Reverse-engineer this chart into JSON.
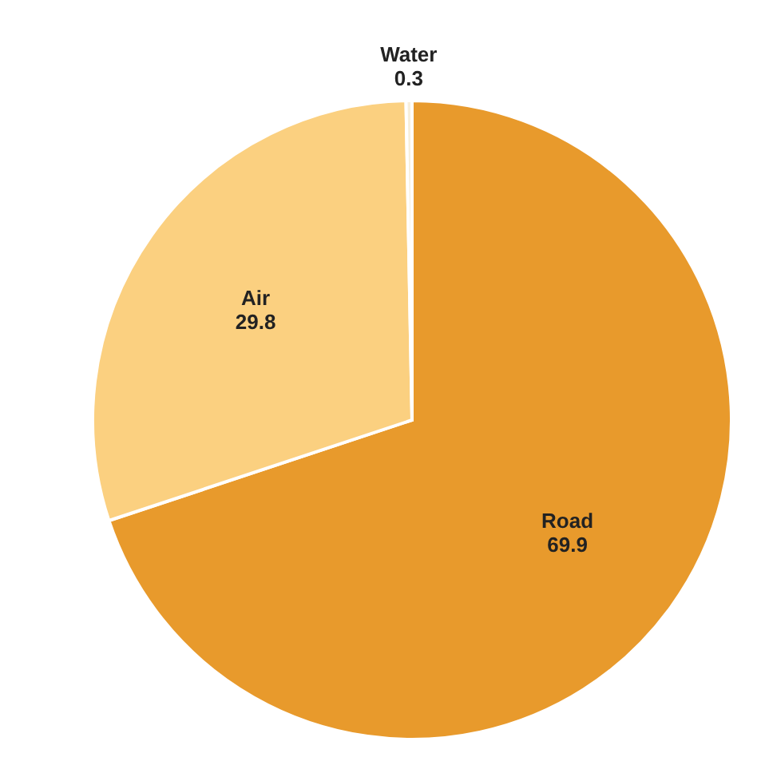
{
  "chart_data": {
    "type": "pie",
    "categories": [
      "Road",
      "Air",
      "Water"
    ],
    "values": [
      69.9,
      29.8,
      0.3
    ],
    "colors": [
      "#e89a2c",
      "#fbd080",
      "#f7efdc"
    ],
    "data_labels": true,
    "legend": false
  }
}
